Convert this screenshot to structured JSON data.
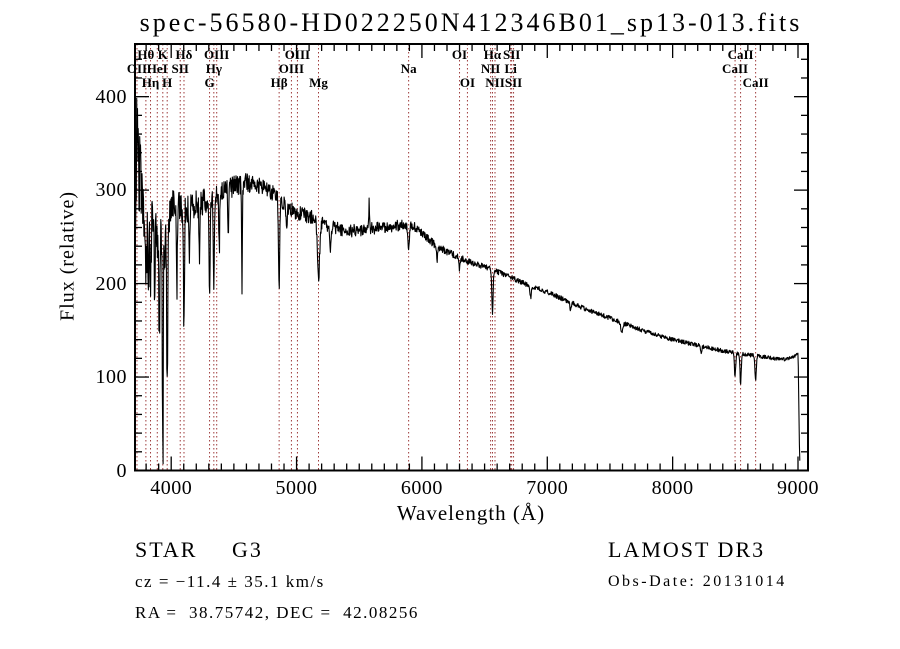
{
  "title": "spec-56580-HD022250N412346B01_sp13-013.fits",
  "annotations": {
    "class": "STAR",
    "subclass": "G3",
    "cz": "cz = −11.4 ± 35.1 km/s",
    "radec": "RA =  38.75742, DEC =  42.08256",
    "survey": "LAMOST DR3",
    "obs_date": "Obs-Date: 20131014"
  },
  "colors": {
    "spectrum": "#000000",
    "axis": "#000000",
    "line_marker": "#9e3b3b",
    "background": "#ffffff"
  },
  "chart_data": {
    "type": "line",
    "title": "spec-56580-HD022250N412346B01_sp13-013.fits",
    "xlabel": "Wavelength (Å)",
    "ylabel": "Flux (relative)",
    "xlim": [
      3713,
      9085
    ],
    "ylim": [
      0,
      456
    ],
    "x_major_ticks": [
      4000,
      5000,
      6000,
      7000,
      8000,
      9000
    ],
    "x_minor_step": 100,
    "y_major_ticks": [
      0,
      100,
      200,
      300,
      400
    ],
    "y_minor_step": 20,
    "grid": false,
    "legend": false,
    "seed": 20131014,
    "sample_step_angstrom": 3,
    "data_end_wavelength": 9016,
    "continuum_points": [
      [
        3713,
        275
      ],
      [
        3730,
        310
      ],
      [
        3745,
        330
      ],
      [
        3760,
        300
      ],
      [
        3780,
        280
      ],
      [
        3810,
        265
      ],
      [
        3840,
        275
      ],
      [
        3880,
        250
      ],
      [
        3920,
        255
      ],
      [
        3960,
        240
      ],
      [
        3990,
        270
      ],
      [
        4020,
        285
      ],
      [
        4060,
        280
      ],
      [
        4120,
        280
      ],
      [
        4180,
        285
      ],
      [
        4240,
        285
      ],
      [
        4320,
        295
      ],
      [
        4400,
        298
      ],
      [
        4500,
        304
      ],
      [
        4600,
        308
      ],
      [
        4700,
        305
      ],
      [
        4800,
        298
      ],
      [
        4900,
        285
      ],
      [
        5000,
        276
      ],
      [
        5100,
        272
      ],
      [
        5200,
        266
      ],
      [
        5300,
        260
      ],
      [
        5400,
        256
      ],
      [
        5500,
        257
      ],
      [
        5600,
        259
      ],
      [
        5700,
        260
      ],
      [
        5800,
        262
      ],
      [
        5900,
        263
      ],
      [
        5960,
        260
      ],
      [
        6020,
        252
      ],
      [
        6100,
        242
      ],
      [
        6200,
        234
      ],
      [
        6300,
        228
      ],
      [
        6400,
        222
      ],
      [
        6500,
        218
      ],
      [
        6600,
        213
      ],
      [
        6700,
        207
      ],
      [
        6800,
        201
      ],
      [
        6900,
        196
      ],
      [
        7000,
        191
      ],
      [
        7100,
        185
      ],
      [
        7200,
        179
      ],
      [
        7300,
        173
      ],
      [
        7400,
        168
      ],
      [
        7500,
        163
      ],
      [
        7600,
        158
      ],
      [
        7700,
        153
      ],
      [
        7800,
        148
      ],
      [
        7900,
        144
      ],
      [
        8000,
        140
      ],
      [
        8100,
        137
      ],
      [
        8200,
        134
      ],
      [
        8300,
        131
      ],
      [
        8400,
        128
      ],
      [
        8500,
        126
      ],
      [
        8600,
        124
      ],
      [
        8700,
        122
      ],
      [
        8800,
        120
      ],
      [
        8900,
        119
      ],
      [
        8970,
        122
      ],
      [
        9000,
        126
      ],
      [
        9004,
        100
      ],
      [
        9008,
        55
      ],
      [
        9012,
        18
      ],
      [
        9016,
        5
      ]
    ],
    "noise_sigma_points": [
      [
        3713,
        55
      ],
      [
        3750,
        50
      ],
      [
        3800,
        38
      ],
      [
        3870,
        32
      ],
      [
        3950,
        30
      ],
      [
        4000,
        20
      ],
      [
        4150,
        16
      ],
      [
        4300,
        13
      ],
      [
        4500,
        11
      ],
      [
        4700,
        9
      ],
      [
        5000,
        8
      ],
      [
        5400,
        7
      ],
      [
        5800,
        6
      ],
      [
        6100,
        4
      ],
      [
        6500,
        3
      ],
      [
        7000,
        2.5
      ],
      [
        8000,
        2.2
      ],
      [
        9016,
        2
      ]
    ],
    "absorption_lines": [
      [
        3798,
        70,
        5
      ],
      [
        3815,
        60,
        4
      ],
      [
        3835,
        85,
        5
      ],
      [
        3868,
        60,
        4
      ],
      [
        3905,
        100,
        4
      ],
      [
        3933,
        240,
        4
      ],
      [
        3968,
        160,
        4
      ],
      [
        4045,
        95,
        4
      ],
      [
        4102,
        130,
        4
      ],
      [
        4144,
        50,
        4
      ],
      [
        4226,
        55,
        4
      ],
      [
        4306,
        105,
        5
      ],
      [
        4340,
        100,
        4
      ],
      [
        4383,
        60,
        4
      ],
      [
        4455,
        45,
        4
      ],
      [
        4565,
        110,
        3
      ],
      [
        4861,
        92,
        5
      ],
      [
        4920,
        30,
        4
      ],
      [
        5175,
        62,
        9
      ],
      [
        5270,
        28,
        6
      ],
      [
        5894,
        30,
        6
      ],
      [
        6122,
        14,
        4
      ],
      [
        6300,
        13,
        4
      ],
      [
        6563,
        46,
        5
      ],
      [
        6867,
        12,
        6
      ],
      [
        7186,
        8,
        6
      ],
      [
        7594,
        12,
        8
      ],
      [
        8227,
        8,
        5
      ],
      [
        8498,
        26,
        5
      ],
      [
        8542,
        32,
        5
      ],
      [
        8662,
        28,
        5
      ]
    ],
    "emission_spikes": [
      [
        3727,
        60,
        4
      ],
      [
        5579,
        38,
        2.5
      ]
    ],
    "spectral_line_markers": [
      {
        "label": "Hθ",
        "wl": 3798,
        "row": 1
      },
      {
        "label": "K",
        "wl": 3933,
        "row": 1
      },
      {
        "label": "Hδ",
        "wl": 4102,
        "row": 1
      },
      {
        "label": "OIII",
        "wl": 4363,
        "row": 1
      },
      {
        "label": "OIII",
        "wl": 5007,
        "row": 1
      },
      {
        "label": "OI",
        "wl": 6300,
        "row": 1
      },
      {
        "label": "Hα",
        "wl": 6563,
        "row": 1
      },
      {
        "label": "SII",
        "wl": 6716,
        "row": 1
      },
      {
        "label": "CaII",
        "wl": 8542,
        "row": 1
      },
      {
        "label": "OII",
        "wl": 3727,
        "row": 2
      },
      {
        "label": "HeI",
        "wl": 3889,
        "row": 2
      },
      {
        "label": "SII",
        "wl": 4072,
        "row": 2
      },
      {
        "label": "Hγ",
        "wl": 4340,
        "row": 2
      },
      {
        "label": "OIII",
        "wl": 4959,
        "row": 2
      },
      {
        "label": "Na",
        "wl": 5894,
        "row": 2
      },
      {
        "label": "NII",
        "wl": 6548,
        "row": 2
      },
      {
        "label": "Li",
        "wl": 6708,
        "row": 2
      },
      {
        "label": "CaII",
        "wl": 8498,
        "row": 2
      },
      {
        "label": "Hη",
        "wl": 3835,
        "row": 3
      },
      {
        "label": "H",
        "wl": 3968,
        "row": 3
      },
      {
        "label": "G",
        "wl": 4306,
        "row": 3
      },
      {
        "label": "Hβ",
        "wl": 4861,
        "row": 3
      },
      {
        "label": "Mg",
        "wl": 5175,
        "row": 3
      },
      {
        "label": "OI",
        "wl": 6363,
        "row": 3
      },
      {
        "label": "NII",
        "wl": 6583,
        "row": 3
      },
      {
        "label": "SII",
        "wl": 6731,
        "row": 3
      },
      {
        "label": "CaII",
        "wl": 8662,
        "row": 3
      }
    ]
  },
  "layout_note": "LAMOST DR3 1-D spectrum quick-look plot"
}
